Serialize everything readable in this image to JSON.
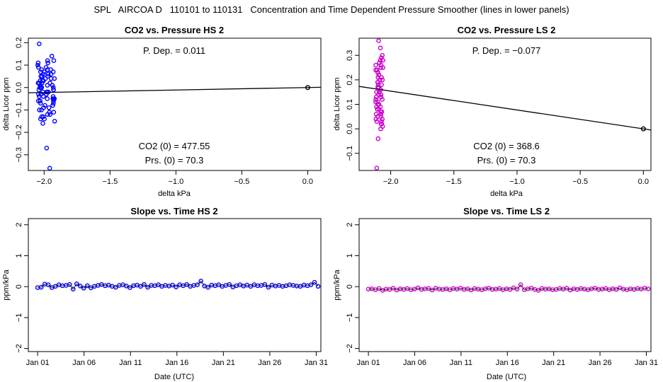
{
  "main_title": "SPL   AIRCOA D   110101 to 110131   Concentration and Time Dependent Pressure Smoother (lines in lower panels)",
  "chart_data": [
    {
      "id": "hs-pressure",
      "type": "scatter",
      "title": "CO2 vs. Pressure HS 2",
      "xlabel": "delta kPa",
      "ylabel": "delta Licor ppm",
      "xlim": [
        -2.12,
        0.1
      ],
      "ylim": [
        -0.37,
        0.22
      ],
      "xticks": [
        -2.0,
        -1.5,
        -1.0,
        -0.5,
        0.0
      ],
      "xtick_labels": [
        "−2.0",
        "−1.5",
        "−1.0",
        "−0.5",
        "0.0"
      ],
      "yticks": [
        -0.3,
        -0.2,
        -0.1,
        0.0,
        0.1,
        0.2
      ],
      "ytick_labels": [
        "−0.3",
        "−0.2",
        "−0.1",
        "0.0",
        "0.1",
        "0.2"
      ],
      "color": "#0000ff",
      "fit_line": {
        "slope": 0.011,
        "intercept": 0.0
      },
      "origin_point": [
        0.0,
        0.0
      ],
      "annotations": {
        "p_dep": "P. Dep. =  0.011",
        "co2_0": "CO2 (0) =  477.55",
        "prs_0": "Prs. (0) =  70.3"
      },
      "x_range": [
        -2.05,
        -1.92
      ],
      "y_sample": [
        0.195,
        0.14,
        0.12,
        0.11,
        0.1,
        0.09,
        0.08,
        0.08,
        0.07,
        0.06,
        0.06,
        0.05,
        0.05,
        0.04,
        0.04,
        0.03,
        0.03,
        0.02,
        0.02,
        0.01,
        0.01,
        0.0,
        0.0,
        0.0,
        -0.01,
        -0.01,
        -0.02,
        -0.02,
        -0.03,
        -0.03,
        -0.04,
        -0.04,
        -0.05,
        -0.05,
        -0.06,
        -0.06,
        -0.07,
        -0.08,
        -0.09,
        -0.1,
        -0.11,
        -0.12,
        -0.13,
        -0.14,
        -0.15,
        -0.16,
        -0.27,
        -0.36,
        0.11,
        0.09,
        0.07,
        0.05,
        0.03,
        0.02,
        0.0,
        -0.02,
        -0.03,
        -0.05,
        -0.07,
        -0.09,
        -0.11,
        -0.13,
        0.06,
        0.04,
        0.02,
        0.0,
        -0.02,
        -0.04,
        -0.06,
        -0.08,
        -0.1,
        0.08,
        0.01,
        -0.01,
        -0.12,
        0.12,
        -0.14,
        0.03,
        -0.05,
        0.07
      ]
    },
    {
      "id": "ls-pressure",
      "type": "scatter",
      "title": "CO2 vs. Pressure LS 2",
      "xlabel": "delta kPa",
      "ylabel": "delta Licor ppm",
      "xlim": [
        -2.25,
        0.06
      ],
      "ylim": [
        -0.17,
        0.37
      ],
      "xticks": [
        -2.0,
        -1.5,
        -1.0,
        -0.5,
        0.0
      ],
      "xtick_labels": [
        "−2.0",
        "−1.5",
        "−1.0",
        "−0.5",
        "0.0"
      ],
      "yticks": [
        -0.1,
        0.0,
        0.1,
        0.2,
        0.3
      ],
      "ytick_labels": [
        "−0.1",
        "0.0",
        "0.1",
        "0.2",
        "0.3"
      ],
      "color": "#cc00cc",
      "fit_line": {
        "slope": -0.077,
        "intercept": 0.0
      },
      "origin_point": [
        0.0,
        0.0
      ],
      "annotations": {
        "p_dep": "P. Dep. =  −0.077",
        "co2_0": "CO2 (0) =  368.6",
        "prs_0": "Prs. (0) =  70.3"
      },
      "x_range": [
        -2.12,
        -2.06
      ],
      "y_sample": [
        0.36,
        0.33,
        0.3,
        0.28,
        0.27,
        0.26,
        0.25,
        0.24,
        0.23,
        0.22,
        0.21,
        0.2,
        0.19,
        0.18,
        0.17,
        0.16,
        0.15,
        0.14,
        0.13,
        0.12,
        0.11,
        0.1,
        0.09,
        0.08,
        0.07,
        0.06,
        0.05,
        0.04,
        0.03,
        0.02,
        0.01,
        0.0,
        -0.04,
        -0.16,
        0.29,
        0.25,
        0.21,
        0.17,
        0.13,
        0.09,
        0.05,
        0.02,
        0.26,
        0.22,
        0.18,
        0.14,
        0.1,
        0.06,
        0.03,
        0.24,
        0.2,
        0.16,
        0.12,
        0.08,
        0.04,
        0.15,
        0.19,
        0.11,
        0.07,
        0.28
      ]
    },
    {
      "id": "hs-slope",
      "type": "scatter",
      "title": "Slope vs. Time HS 2",
      "xlabel": "Date (UTC)",
      "ylabel": "ppm/kPa",
      "xlim": [
        0.0,
        31.5
      ],
      "ylim": [
        -2.1,
        2.2
      ],
      "xticks": [
        1,
        6,
        11,
        16,
        21,
        26,
        31
      ],
      "xtick_labels": [
        "Jan 01",
        "Jan 06",
        "Jan 11",
        "Jan 16",
        "Jan 21",
        "Jan 26",
        "Jan 31"
      ],
      "yticks": [
        -2,
        -1,
        0,
        1,
        2
      ],
      "ytick_labels": [
        "−2",
        "−1",
        "0",
        "1",
        "2"
      ],
      "color": "#0000ff",
      "x_range": [
        1.0,
        31.2
      ],
      "values": [
        -0.03,
        -0.02,
        0.08,
        0.06,
        -0.03,
        0.01,
        0.06,
        0.03,
        0.04,
        0.07,
        -0.08,
        0.09,
        0.02,
        -0.05,
        0.03,
        -0.04,
        0.01,
        0.04,
        0.07,
        0.03,
        0.05,
        0.01,
        -0.02,
        0.04,
        0.06,
        0.02,
        -0.03,
        0.03,
        0.05,
        0.01,
        0.07,
        -0.02,
        0.04,
        0.03,
        0.06,
        0.01,
        0.04,
        0.02,
        0.05,
        -0.01,
        0.06,
        0.03,
        0.07,
        0.01,
        0.04,
        0.06,
        0.18,
        0.02,
        -0.02,
        0.05,
        0.03,
        0.06,
        0.01,
        0.04,
        0.07,
        -0.01,
        0.03,
        0.06,
        0.02,
        0.05,
        0.01,
        0.06,
        0.03,
        0.04,
        0.07,
        -0.02,
        0.05,
        0.02,
        0.04,
        0.01,
        0.03,
        0.06,
        0.04,
        0.02,
        0.01,
        0.05,
        0.03,
        0.06,
        0.14,
        0.01
      ]
    },
    {
      "id": "ls-slope",
      "type": "scatter",
      "title": "Slope vs. Time LS 2",
      "xlabel": "Date (UTC)",
      "ylabel": "ppm/kPa",
      "xlim": [
        0.0,
        31.5
      ],
      "ylim": [
        -2.1,
        2.2
      ],
      "xticks": [
        1,
        6,
        11,
        16,
        21,
        26,
        31
      ],
      "xtick_labels": [
        "Jan 01",
        "Jan 06",
        "Jan 11",
        "Jan 16",
        "Jan 21",
        "Jan 26",
        "Jan 31"
      ],
      "yticks": [
        -2,
        -1,
        0,
        1,
        2
      ],
      "ytick_labels": [
        "−2",
        "−1",
        "0",
        "1",
        "2"
      ],
      "color": "#cc00cc",
      "x_range": [
        1.0,
        31.2
      ],
      "values": [
        -0.08,
        -0.07,
        -0.1,
        -0.06,
        -0.12,
        -0.08,
        -0.09,
        -0.05,
        -0.11,
        -0.07,
        -0.09,
        -0.06,
        -0.1,
        -0.08,
        -0.04,
        -0.09,
        -0.07,
        -0.06,
        -0.11,
        -0.05,
        -0.08,
        -0.09,
        -0.07,
        -0.1,
        -0.06,
        -0.08,
        -0.05,
        -0.09,
        -0.07,
        -0.11,
        -0.06,
        -0.08,
        -0.1,
        -0.07,
        -0.05,
        -0.09,
        -0.08,
        -0.06,
        -0.1,
        -0.07,
        -0.09,
        -0.04,
        -0.08,
        0.06,
        -0.1,
        -0.07,
        -0.05,
        -0.09,
        -0.12,
        -0.06,
        -0.08,
        -0.07,
        -0.1,
        -0.09,
        -0.06,
        -0.08,
        -0.05,
        -0.11,
        -0.07,
        -0.09,
        -0.06,
        -0.08,
        -0.1,
        -0.07,
        -0.05,
        -0.09,
        -0.08,
        -0.06,
        -0.1,
        -0.07,
        -0.09,
        -0.04,
        -0.08,
        -0.1,
        -0.07,
        -0.09,
        -0.06,
        -0.08,
        -0.05,
        -0.07
      ]
    }
  ]
}
